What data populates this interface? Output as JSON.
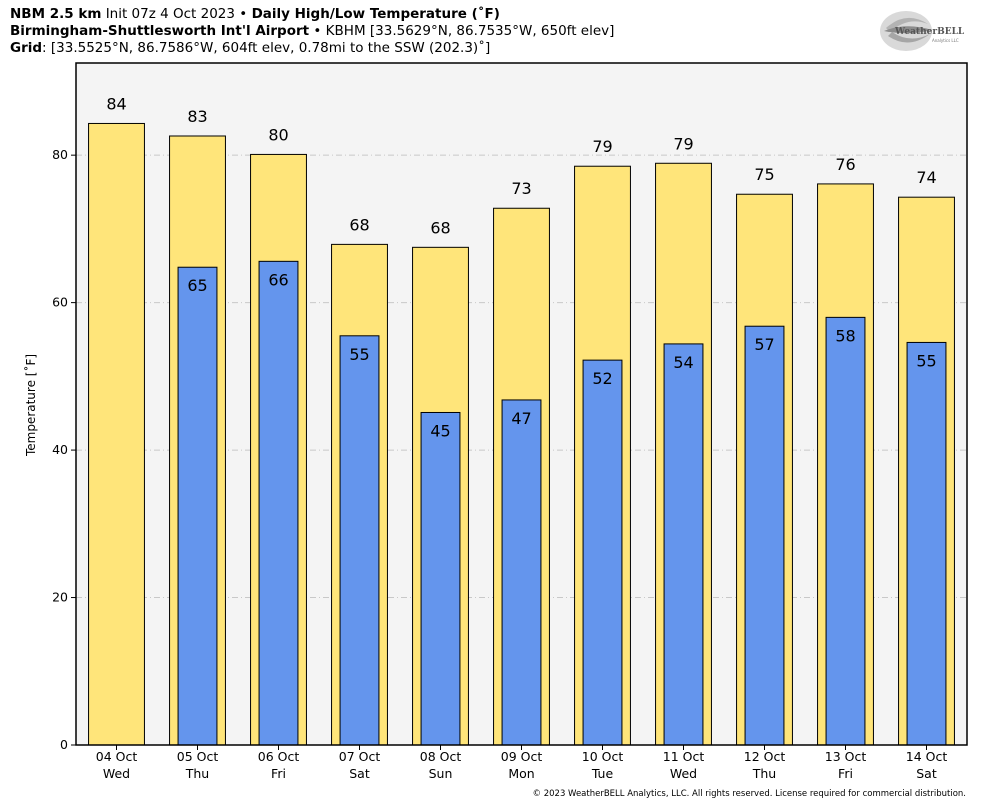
{
  "header": {
    "model": "NBM 2.5 km",
    "init": "Init 07z 4 Oct 2023",
    "sep1": "•",
    "product": "Daily High/Low Temperature (˚F)",
    "station_name": "Birmingham-Shuttlesworth Int'l Airport",
    "sep2": "•",
    "station_info": "KBHM [33.5629°N, 86.7535°W, 650ft elev]",
    "grid_label": "Grid",
    "grid_info": ": [33.5525°N, 86.7586°W, 604ft elev, 0.78mi to the SSW (202.3)˚]"
  },
  "logo": {
    "text": "WeatherBELL",
    "sub": "Analytics LLC"
  },
  "footer": {
    "copyright": "© 2023 WeatherBELL Analytics, LLC. All rights reserved. License required for commercial distribution."
  },
  "colors": {
    "high": "#ffe57a",
    "low": "#6495ed",
    "plot_bg": "#f4f4f4",
    "grid": "#c8c8c8"
  },
  "chart_data": {
    "type": "bar",
    "ylabel": "Temperature [˚F]",
    "ylim": [
      0,
      92.5
    ],
    "yticks": [
      0,
      20,
      40,
      60,
      80
    ],
    "grid": true,
    "categories": [
      "04 Oct",
      "05 Oct",
      "06 Oct",
      "07 Oct",
      "08 Oct",
      "09 Oct",
      "10 Oct",
      "11 Oct",
      "12 Oct",
      "13 Oct",
      "14 Oct"
    ],
    "weekdays": [
      "Wed",
      "Thu",
      "Fri",
      "Sat",
      "Sun",
      "Mon",
      "Tue",
      "Wed",
      "Thu",
      "Fri",
      "Sat"
    ],
    "series": [
      {
        "values": [
          84.3,
          82.6,
          80.1,
          67.9,
          67.5,
          72.8,
          78.5,
          78.9,
          74.7,
          76.1,
          74.3
        ],
        "labels": [
          "84",
          "83",
          "80",
          "68",
          "68",
          "73",
          "79",
          "79",
          "75",
          "76",
          "74"
        ]
      },
      {
        "values": [
          null,
          64.8,
          65.6,
          55.5,
          45.1,
          46.8,
          52.2,
          54.4,
          56.8,
          58.0,
          54.6
        ],
        "labels": [
          "",
          "65",
          "66",
          "55",
          "45",
          "47",
          "52",
          "54",
          "57",
          "58",
          "55"
        ]
      }
    ]
  }
}
